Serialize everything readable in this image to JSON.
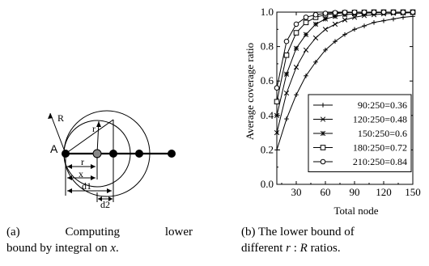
{
  "diagram": {
    "labels": {
      "R": "R",
      "r_inner": "r",
      "A": "A",
      "r_dim": "r",
      "x_dim": "x",
      "d1": "d1",
      "d2": "d2"
    }
  },
  "chart_data": {
    "type": "line",
    "xlabel": "Total node",
    "ylabel": "Average coverage ratio",
    "xlim": [
      10,
      150
    ],
    "ylim": [
      0.0,
      1.0
    ],
    "xticks": [
      30,
      60,
      90,
      120,
      150
    ],
    "yticks": [
      0.0,
      0.2,
      0.4,
      0.6,
      0.8,
      1.0
    ],
    "ytick_labels": [
      "0.0",
      "0.2",
      "0.4",
      "0.6",
      "0.8",
      "1.0"
    ],
    "legend_placement": "lower-right",
    "grid": false,
    "x": [
      10,
      20,
      30,
      40,
      50,
      60,
      70,
      80,
      90,
      100,
      110,
      120,
      130,
      140,
      150
    ],
    "series": [
      {
        "name": "90:250=0.36",
        "marker": "plus",
        "values": [
          0.2,
          0.38,
          0.52,
          0.63,
          0.71,
          0.78,
          0.83,
          0.87,
          0.9,
          0.92,
          0.94,
          0.95,
          0.96,
          0.97,
          0.975
        ]
      },
      {
        "name": "120:250=0.48",
        "marker": "cross",
        "values": [
          0.3,
          0.53,
          0.68,
          0.78,
          0.85,
          0.9,
          0.93,
          0.955,
          0.97,
          0.98,
          0.985,
          0.99,
          0.993,
          0.995,
          0.997
        ]
      },
      {
        "name": "150:250=0.6",
        "marker": "asterisk",
        "values": [
          0.4,
          0.64,
          0.79,
          0.87,
          0.93,
          0.96,
          0.975,
          0.985,
          0.99,
          0.994,
          0.996,
          0.998,
          0.999,
          0.999,
          1.0
        ]
      },
      {
        "name": "180:250=0.72",
        "marker": "square",
        "values": [
          0.48,
          0.75,
          0.88,
          0.94,
          0.97,
          0.985,
          0.992,
          0.996,
          0.998,
          0.999,
          1.0,
          1.0,
          1.0,
          1.0,
          1.0
        ]
      },
      {
        "name": "210:250=0.84",
        "marker": "circle",
        "values": [
          0.56,
          0.83,
          0.93,
          0.97,
          0.985,
          0.993,
          0.997,
          0.999,
          1.0,
          1.0,
          1.0,
          1.0,
          1.0,
          1.0,
          1.0
        ]
      }
    ]
  },
  "captions": {
    "a": {
      "line1_label": "(a)",
      "line1_word1": "Computing",
      "line1_word2": "lower",
      "line2": "bound by integral on ",
      "var": "x",
      "end": "."
    },
    "b": {
      "line1": "(b) The lower bound of",
      "line2_pre": "different ",
      "var1": "r",
      "colon": " : ",
      "var2": "R",
      "line2_post": " ratios."
    }
  }
}
